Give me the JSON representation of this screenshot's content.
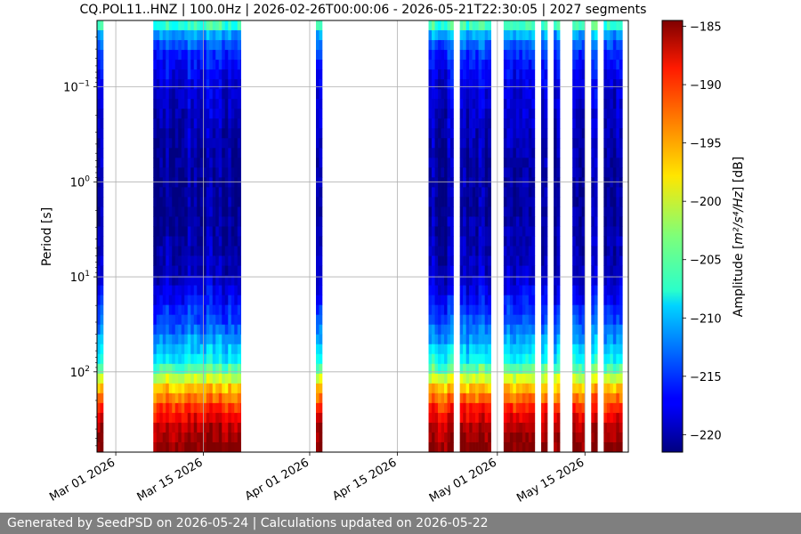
{
  "chart_data": {
    "type": "heatmap",
    "title": "CQ.POL11..HNZ | 100.0Hz | 2026-02-26T00:00:06 - 2026-05-21T22:30:05 | 2027 segments",
    "ylabel": "Period [s]",
    "y_scale": "log",
    "y_range_s": [
      0.02,
      700
    ],
    "x_range_dates": [
      "2026-02-26",
      "2026-05-21"
    ],
    "x_ticks": [
      {
        "date": "2026-03-01",
        "label": "Mar 01 2026"
      },
      {
        "date": "2026-03-15",
        "label": "Mar 15 2026"
      },
      {
        "date": "2026-04-01",
        "label": "Apr 01 2026"
      },
      {
        "date": "2026-04-15",
        "label": "Apr 15 2026"
      },
      {
        "date": "2026-05-01",
        "label": "May 01 2026"
      },
      {
        "date": "2026-05-15",
        "label": "May 15 2026"
      }
    ],
    "y_ticks": [
      {
        "value": 0.1,
        "base": "10",
        "exp": "−1"
      },
      {
        "value": 1,
        "base": "10",
        "exp": "0"
      },
      {
        "value": 10,
        "base": "10",
        "exp": "1"
      },
      {
        "value": 100,
        "base": "10",
        "exp": "2"
      }
    ],
    "grid": true,
    "colorbar": {
      "label_prefix": "Amplitude [",
      "label_math": "m²/s⁴/Hz",
      "label_suffix": "] [dB]",
      "range_db": [
        -221.5,
        -184.5
      ],
      "colormap": "jet",
      "ticks": [
        {
          "value": -185,
          "label": "−185"
        },
        {
          "value": -190,
          "label": "−190"
        },
        {
          "value": -195,
          "label": "−195"
        },
        {
          "value": -200,
          "label": "−200"
        },
        {
          "value": -205,
          "label": "−205"
        },
        {
          "value": -210,
          "label": "−210"
        },
        {
          "value": -215,
          "label": "−215"
        },
        {
          "value": -220,
          "label": "−220"
        }
      ]
    },
    "data_intervals": [
      {
        "start": "2026-02-26",
        "end": "2026-02-27"
      },
      {
        "start": "2026-03-07",
        "end": "2026-03-21"
      },
      {
        "start": "2026-04-02",
        "end": "2026-04-03"
      },
      {
        "start": "2026-04-20",
        "end": "2026-04-24"
      },
      {
        "start": "2026-04-25",
        "end": "2026-04-30"
      },
      {
        "start": "2026-05-02",
        "end": "2026-05-07"
      },
      {
        "start": "2026-05-08",
        "end": "2026-05-09"
      },
      {
        "start": "2026-05-10",
        "end": "2026-05-11"
      },
      {
        "start": "2026-05-13",
        "end": "2026-05-15"
      },
      {
        "start": "2026-05-16",
        "end": "2026-05-17"
      },
      {
        "start": "2026-05-18",
        "end": "2026-05-21"
      }
    ],
    "psd_profile": [
      {
        "period_s": 0.02,
        "db": -203
      },
      {
        "period_s": 0.03,
        "db": -212
      },
      {
        "period_s": 0.05,
        "db": -216
      },
      {
        "period_s": 0.1,
        "db": -218
      },
      {
        "period_s": 0.5,
        "db": -220
      },
      {
        "period_s": 2,
        "db": -220.5
      },
      {
        "period_s": 10,
        "db": -219
      },
      {
        "period_s": 30,
        "db": -214
      },
      {
        "period_s": 80,
        "db": -207
      },
      {
        "period_s": 150,
        "db": -196
      },
      {
        "period_s": 250,
        "db": -190
      },
      {
        "period_s": 400,
        "db": -186
      },
      {
        "period_s": 700,
        "db": -184.5
      }
    ]
  },
  "footer": {
    "text": "Generated by SeedPSD on 2026-05-24 | Calculations updated on 2026-05-22"
  }
}
